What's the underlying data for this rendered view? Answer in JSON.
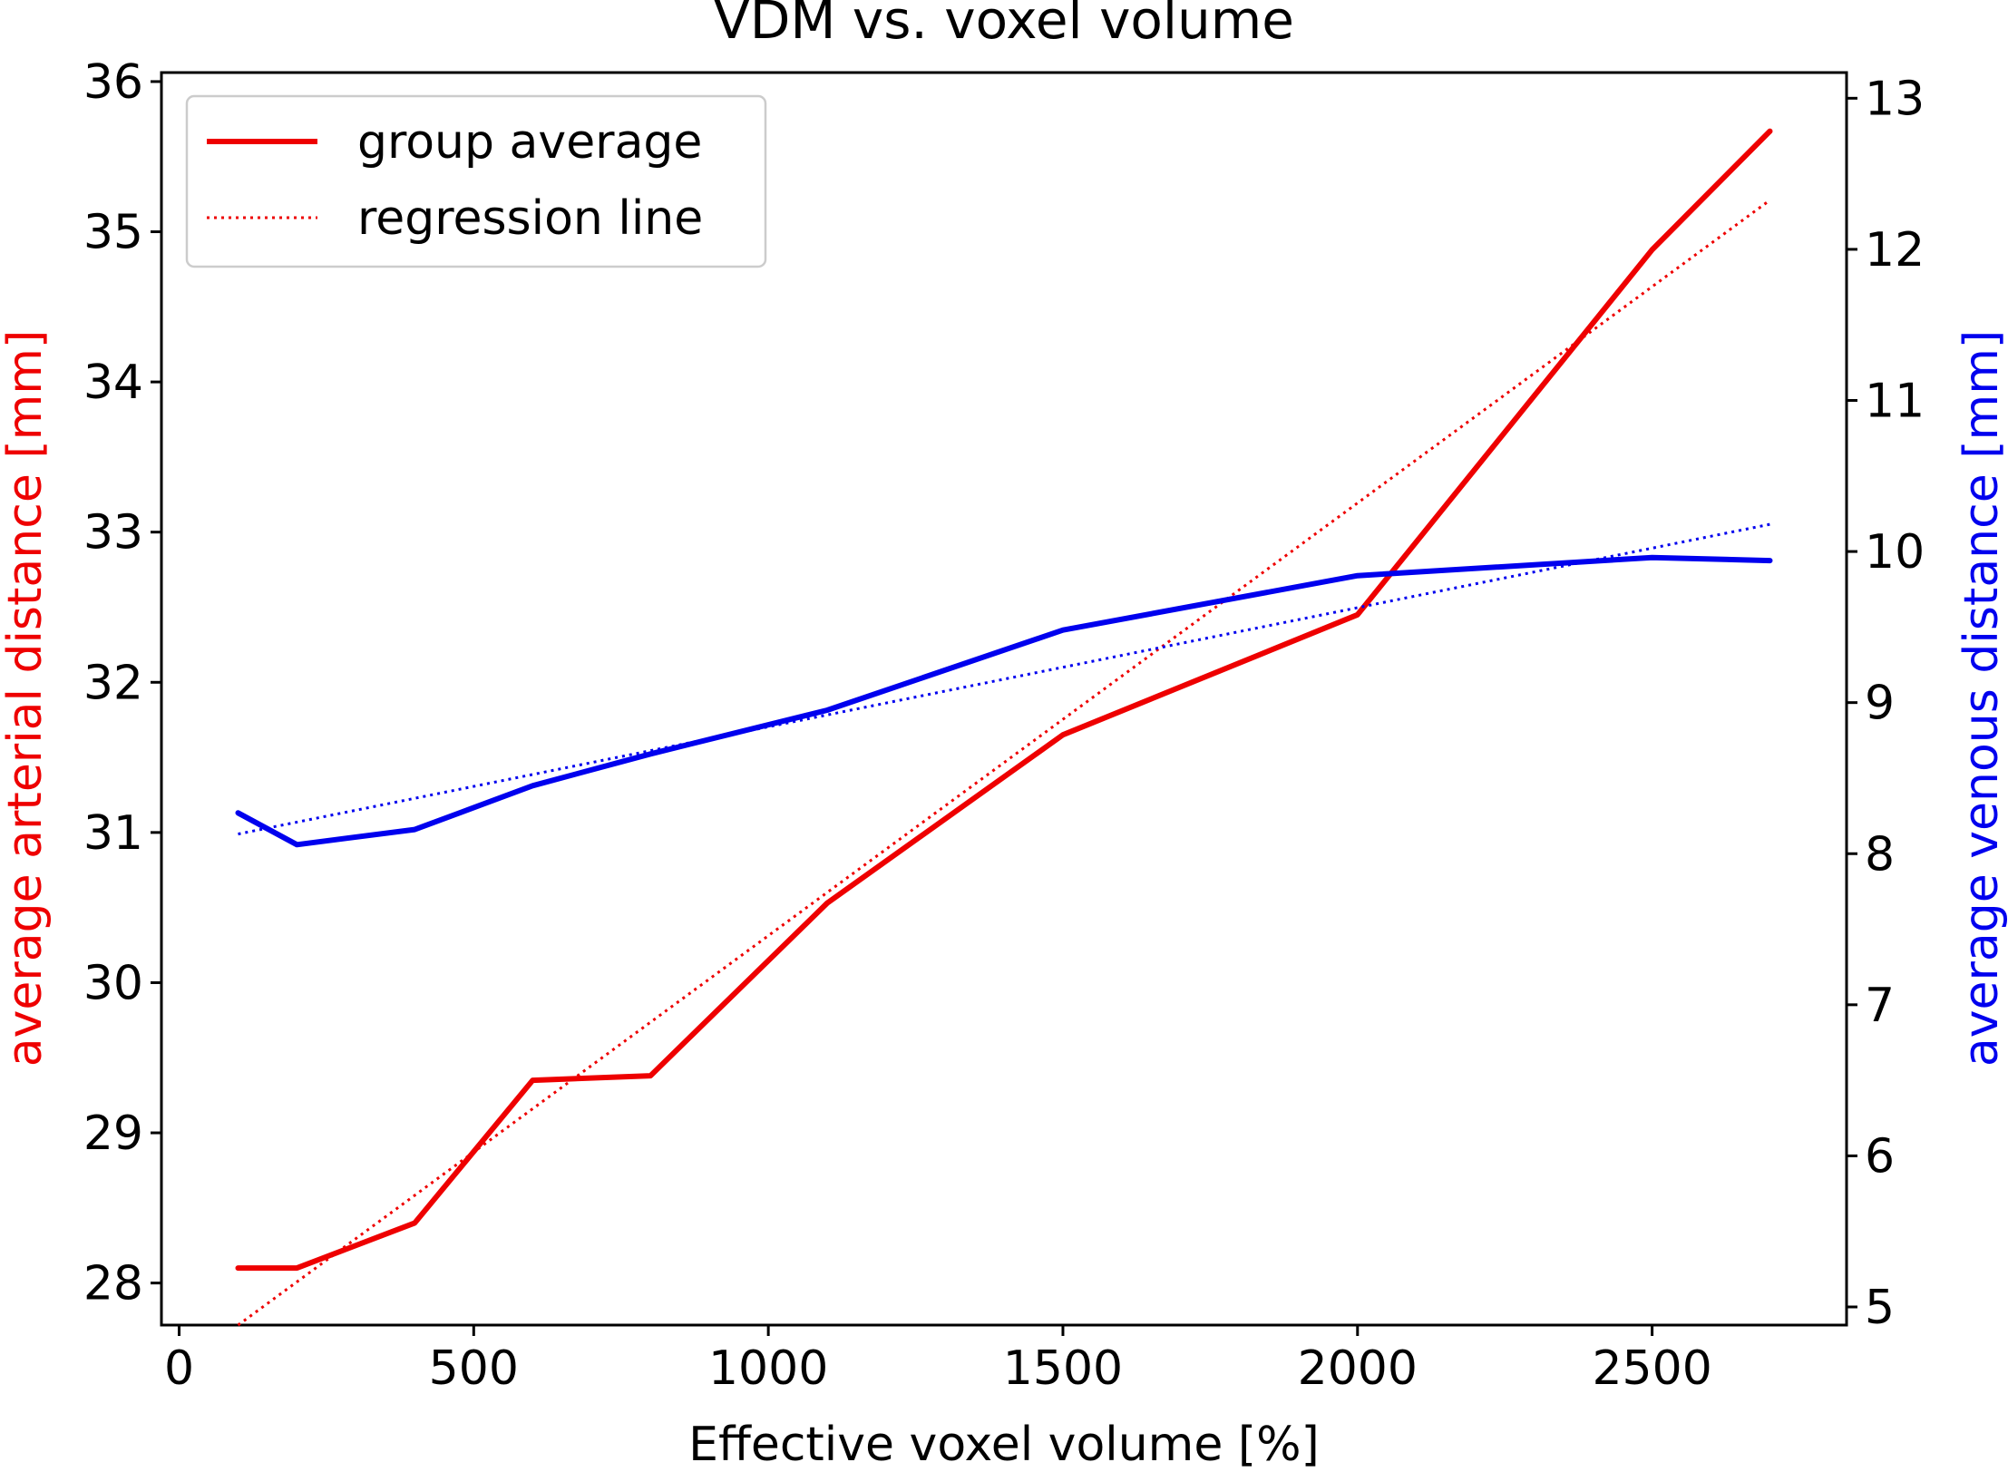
{
  "chart_data": {
    "type": "line",
    "title": "VDM vs. voxel volume",
    "xlabel": "Effective voxel volume [%]",
    "ylabel": "average arterial distance [mm]",
    "y2label": "average venous distance [mm]",
    "xlim": [
      -30,
      2830
    ],
    "ylim": [
      27.72,
      36.06
    ],
    "y2lim": [
      4.88,
      13.17
    ],
    "xticks": [
      0,
      500,
      1000,
      1500,
      2000,
      2500
    ],
    "yticks": [
      28,
      29,
      30,
      31,
      32,
      33,
      34,
      35,
      36
    ],
    "y2ticks": [
      5,
      6,
      7,
      8,
      9,
      10,
      11,
      12,
      13
    ],
    "grid": false,
    "legend": {
      "position": "top-left",
      "entries": [
        {
          "label": "group average",
          "style": "solid",
          "color": "#ee0000"
        },
        {
          "label": "regression line",
          "style": "dotted",
          "color": "#ee0000"
        }
      ]
    },
    "series": [
      {
        "name": "arterial group average",
        "axis": "left",
        "style": "solid",
        "color": "#ee0000",
        "x": [
          100,
          200,
          400,
          600,
          800,
          1100,
          1500,
          2000,
          2500,
          2700
        ],
        "values": [
          28.1,
          28.1,
          28.4,
          29.35,
          29.38,
          30.53,
          31.65,
          32.45,
          34.88,
          35.67
        ]
      },
      {
        "name": "arterial regression line",
        "axis": "left",
        "style": "dotted",
        "color": "#ee0000",
        "x": [
          100,
          2700
        ],
        "values": [
          27.72,
          35.21
        ]
      },
      {
        "name": "venous group average",
        "axis": "right",
        "style": "solid",
        "color": "#0000ee",
        "x": [
          100,
          200,
          400,
          600,
          800,
          1100,
          1500,
          2000,
          2500,
          2700
        ],
        "values": [
          8.27,
          8.06,
          8.16,
          8.45,
          8.66,
          8.95,
          9.48,
          9.84,
          9.96,
          9.94
        ]
      },
      {
        "name": "venous regression line",
        "axis": "right",
        "style": "dotted",
        "color": "#0000ee",
        "x": [
          100,
          2700
        ],
        "values": [
          8.13,
          10.18
        ]
      }
    ]
  }
}
